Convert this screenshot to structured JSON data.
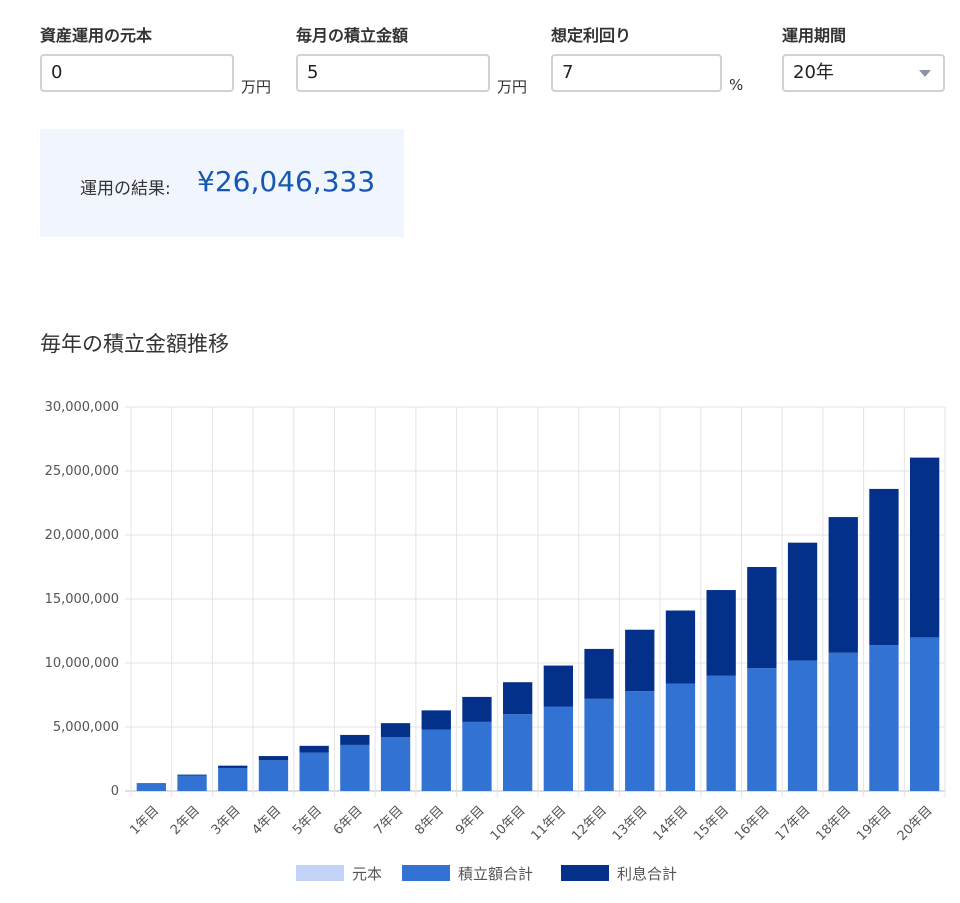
{
  "form": {
    "principal": {
      "label": "資産運用の元本",
      "value": "0",
      "unit": "万円"
    },
    "monthly": {
      "label": "毎月の積立金額",
      "value": "5",
      "unit": "万円"
    },
    "rate": {
      "label": "想定利回り",
      "value": "7",
      "unit": "%"
    },
    "period": {
      "label": "運用期間",
      "value": "20年"
    }
  },
  "result": {
    "label": "運用の結果:",
    "value": "¥26,046,333"
  },
  "chart_title": "毎年の積立金額推移",
  "chart_data": {
    "type": "bar",
    "stacked": true,
    "categories": [
      "1年目",
      "2年目",
      "3年目",
      "4年目",
      "5年目",
      "6年目",
      "7年目",
      "8年目",
      "9年目",
      "10年目",
      "11年目",
      "12年目",
      "13年目",
      "14年目",
      "15年目",
      "16年目",
      "17年目",
      "18年目",
      "19年目",
      "20年目"
    ],
    "series": [
      {
        "name": "元本",
        "color": "#c3d3f7",
        "values": [
          0,
          0,
          0,
          0,
          0,
          0,
          0,
          0,
          0,
          0,
          0,
          0,
          0,
          0,
          0,
          0,
          0,
          0,
          0,
          0
        ]
      },
      {
        "name": "積立額合計",
        "color": "#3172d2",
        "values": [
          600000,
          1200000,
          1800000,
          2400000,
          3000000,
          3600000,
          4200000,
          4800000,
          5400000,
          6000000,
          6600000,
          7200000,
          7800000,
          8400000,
          9000000,
          9600000,
          10200000,
          10800000,
          11400000,
          12000000
        ]
      },
      {
        "name": "利息合計",
        "color": "#03318a",
        "values": [
          20000,
          80000,
          180000,
          330000,
          530000,
          780000,
          1100000,
          1500000,
          1950000,
          2500000,
          3200000,
          3900000,
          4800000,
          5700000,
          6700000,
          7900000,
          9200000,
          10600000,
          12200000,
          14046333
        ]
      }
    ],
    "y_ticks": [
      "0",
      "5,000,000",
      "10,000,000",
      "15,000,000",
      "20,000,000",
      "25,000,000",
      "30,000,000"
    ],
    "ylim": [
      0,
      30000000
    ],
    "grid": true,
    "legend_position": "bottom"
  }
}
